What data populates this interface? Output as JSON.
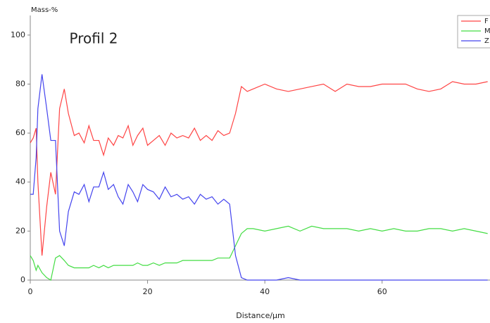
{
  "chart_data": {
    "type": "line",
    "y_label": "Mass-%",
    "x_label": "Distance/µm",
    "annotation": "Profil 2",
    "x": [
      0,
      0.5,
      1,
      1.3,
      2,
      2.8,
      3.5,
      4.3,
      5,
      5.8,
      6.5,
      7.5,
      8.3,
      9.2,
      10,
      10.8,
      11.7,
      12.5,
      13.3,
      14.2,
      15,
      15.8,
      16.7,
      17.5,
      18.3,
      19.2,
      20,
      21,
      22,
      23,
      24,
      25,
      26,
      27,
      28,
      29,
      30,
      31,
      32,
      33,
      34,
      35,
      36,
      37,
      38,
      40,
      42,
      44,
      46,
      48,
      50,
      52,
      54,
      56,
      58,
      60,
      62,
      64,
      66,
      68,
      70,
      72,
      74,
      76,
      78
    ],
    "series": [
      {
        "name": "F",
        "color": "#ff4444",
        "values": [
          56,
          58,
          62,
          40,
          10,
          30,
          44,
          35,
          70,
          78,
          68,
          59,
          60,
          56,
          63,
          57,
          57,
          51,
          58,
          55,
          59,
          58,
          63,
          55,
          59,
          62,
          55,
          57,
          59,
          55,
          60,
          58,
          59,
          58,
          62,
          57,
          59,
          57,
          61,
          59,
          60,
          68,
          79,
          77,
          78,
          80,
          78,
          77,
          78,
          79,
          80,
          77,
          80,
          79,
          79,
          80,
          80,
          80,
          78,
          77,
          78,
          81,
          80,
          80,
          81
        ]
      },
      {
        "name": "M",
        "color": "#44dd44",
        "values": [
          10,
          8,
          4,
          6,
          3,
          1,
          0,
          9,
          10,
          8,
          6,
          5,
          5,
          5,
          5,
          6,
          5,
          6,
          5,
          6,
          6,
          6,
          6,
          6,
          7,
          6,
          6,
          7,
          6,
          7,
          7,
          7,
          8,
          8,
          8,
          8,
          8,
          8,
          9,
          9,
          9,
          14,
          19,
          21,
          21,
          20,
          21,
          22,
          20,
          22,
          21,
          21,
          21,
          20,
          21,
          20,
          21,
          20,
          20,
          21,
          21,
          20,
          21,
          20,
          19
        ]
      },
      {
        "name": "Z",
        "color": "#4444ee",
        "values": [
          35,
          35,
          50,
          70,
          84,
          70,
          57,
          57,
          20,
          14,
          28,
          36,
          35,
          39,
          32,
          38,
          38,
          44,
          37,
          39,
          34,
          31,
          39,
          36,
          32,
          39,
          37,
          36,
          33,
          38,
          34,
          35,
          33,
          34,
          31,
          35,
          33,
          34,
          31,
          33,
          31,
          10,
          1,
          0,
          0,
          0,
          0,
          1,
          0,
          0,
          0,
          0,
          0,
          0,
          0,
          0,
          0,
          0,
          0,
          0,
          0,
          0,
          0,
          0,
          0
        ]
      }
    ],
    "xlim": [
      0,
      78.4
    ],
    "xticks": [
      0,
      20,
      40,
      60
    ],
    "ylim": [
      0,
      108
    ],
    "yticks": [
      0,
      20,
      40,
      60,
      80,
      100
    ],
    "legend": "upper right"
  }
}
